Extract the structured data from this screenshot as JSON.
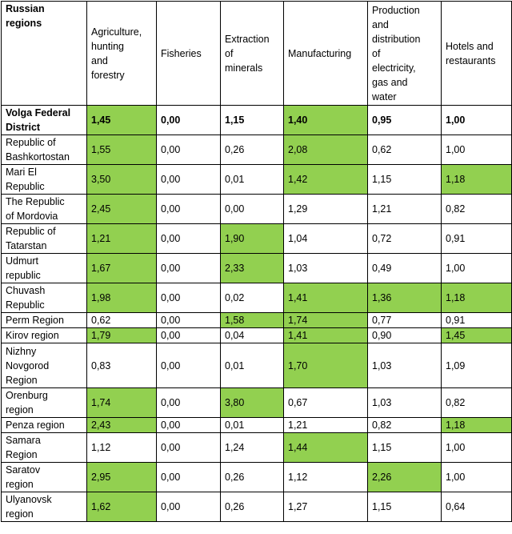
{
  "header": {
    "columns": [
      "Russian\nregions",
      "Agriculture,\nhunting\nand\nforestry",
      "Fisheries",
      "Extraction\nof\nminerals",
      "Manufacturing",
      "Production\nand\ndistribution\nof\nelectricity,\ngas and\nwater",
      "Hotels and\nrestaurants"
    ]
  },
  "highlight_color": "#92d050",
  "rows": [
    {
      "region": "Volga Federal\nDistrict",
      "values": [
        "1,45",
        "0,00",
        "1,15",
        "1,40",
        "0,95",
        "1,00"
      ],
      "highlight": [
        true,
        false,
        false,
        true,
        false,
        false
      ],
      "bold": true
    },
    {
      "region": "Republic of\nBashkortostan",
      "values": [
        "1,55",
        "0,00",
        "0,26",
        "2,08",
        "0,62",
        "1,00"
      ],
      "highlight": [
        true,
        false,
        false,
        true,
        false,
        false
      ]
    },
    {
      "region": "Mari El\nRepublic",
      "values": [
        "3,50",
        "0,00",
        "0,01",
        "1,42",
        "1,15",
        "1,18"
      ],
      "highlight": [
        true,
        false,
        false,
        true,
        false,
        true
      ]
    },
    {
      "region": "The Republic\nof Mordovia",
      "values": [
        "2,45",
        "0,00",
        "0,00",
        "1,29",
        "1,21",
        "0,82"
      ],
      "highlight": [
        true,
        false,
        false,
        false,
        false,
        false
      ]
    },
    {
      "region": "Republic of\nTatarstan",
      "values": [
        "1,21",
        "0,00",
        "1,90",
        "1,04",
        "0,72",
        "0,91"
      ],
      "highlight": [
        true,
        false,
        true,
        false,
        false,
        false
      ]
    },
    {
      "region": "Udmurt\nrepublic",
      "values": [
        "1,67",
        "0,00",
        "2,33",
        "1,03",
        "0,49",
        "1,00"
      ],
      "highlight": [
        true,
        false,
        true,
        false,
        false,
        false
      ]
    },
    {
      "region": "Chuvash\nRepublic",
      "values": [
        "1,98",
        "0,00",
        "0,02",
        "1,41",
        "1,36",
        "1,18"
      ],
      "highlight": [
        true,
        false,
        false,
        true,
        true,
        true
      ]
    },
    {
      "region": "Perm Region",
      "values": [
        "0,62",
        "0,00",
        "1,58",
        "1,74",
        "0,77",
        "0,91"
      ],
      "highlight": [
        false,
        false,
        true,
        true,
        false,
        false
      ]
    },
    {
      "region": "Kirov region",
      "values": [
        "1,79",
        "0,00",
        "0,04",
        "1,41",
        "0,90",
        "1,45"
      ],
      "highlight": [
        true,
        false,
        false,
        true,
        false,
        true
      ]
    },
    {
      "region": "Nizhny\nNovgorod\nRegion",
      "values": [
        "0,83",
        "0,00",
        "0,01",
        "1,70",
        "1,03",
        "1,09"
      ],
      "highlight": [
        false,
        false,
        false,
        true,
        false,
        false
      ]
    },
    {
      "region": "Orenburg\nregion",
      "values": [
        "1,74",
        "0,00",
        "3,80",
        "0,67",
        "1,03",
        "0,82"
      ],
      "highlight": [
        true,
        false,
        true,
        false,
        false,
        false
      ]
    },
    {
      "region": "Penza region",
      "values": [
        "2,43",
        "0,00",
        "0,01",
        "1,21",
        "0,82",
        "1,18"
      ],
      "highlight": [
        true,
        false,
        false,
        false,
        false,
        true
      ]
    },
    {
      "region": "Samara\nRegion",
      "values": [
        "1,12",
        "0,00",
        "1,24",
        "1,44",
        "1,15",
        "1,00"
      ],
      "highlight": [
        false,
        false,
        false,
        true,
        false,
        false
      ]
    },
    {
      "region": "Saratov\nregion",
      "values": [
        "2,95",
        "0,00",
        "0,26",
        "1,12",
        "2,26",
        "1,00"
      ],
      "highlight": [
        true,
        false,
        false,
        false,
        true,
        false
      ]
    },
    {
      "region": "Ulyanovsk\nregion",
      "values": [
        "1,62",
        "0,00",
        "0,26",
        "1,27",
        "1,15",
        "0,64"
      ],
      "highlight": [
        true,
        false,
        false,
        false,
        false,
        false
      ]
    }
  ]
}
